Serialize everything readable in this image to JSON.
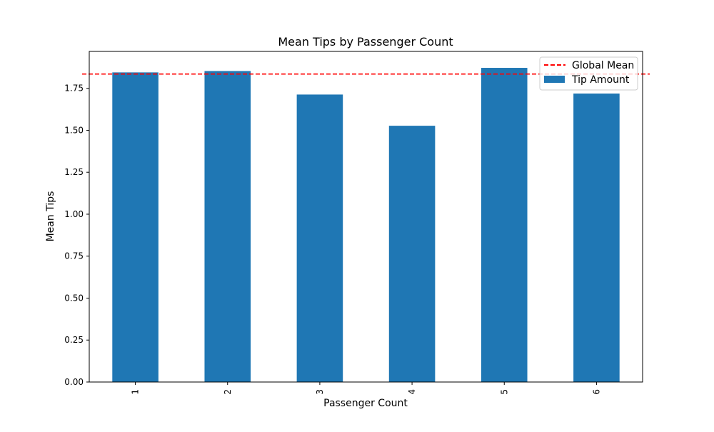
{
  "chart_data": {
    "type": "bar",
    "title": "Mean Tips by Passenger Count",
    "xlabel": "Passenger Count",
    "ylabel": "Mean Tips",
    "categories": [
      "1",
      "2",
      "3",
      "4",
      "5",
      "6"
    ],
    "series": [
      {
        "name": "Tip Amount",
        "values": [
          1.845,
          1.853,
          1.713,
          1.527,
          1.872,
          1.719
        ],
        "color": "#1f77b4"
      }
    ],
    "reference_line": {
      "name": "Global Mean",
      "value": 1.835,
      "color": "#ff0000",
      "style": "dashed"
    },
    "ylim": [
      0,
      1.97
    ],
    "yticks": [
      "0.00",
      "0.25",
      "0.50",
      "0.75",
      "1.00",
      "1.25",
      "1.50",
      "1.75"
    ],
    "legend_position": "top-right",
    "grid": false
  }
}
